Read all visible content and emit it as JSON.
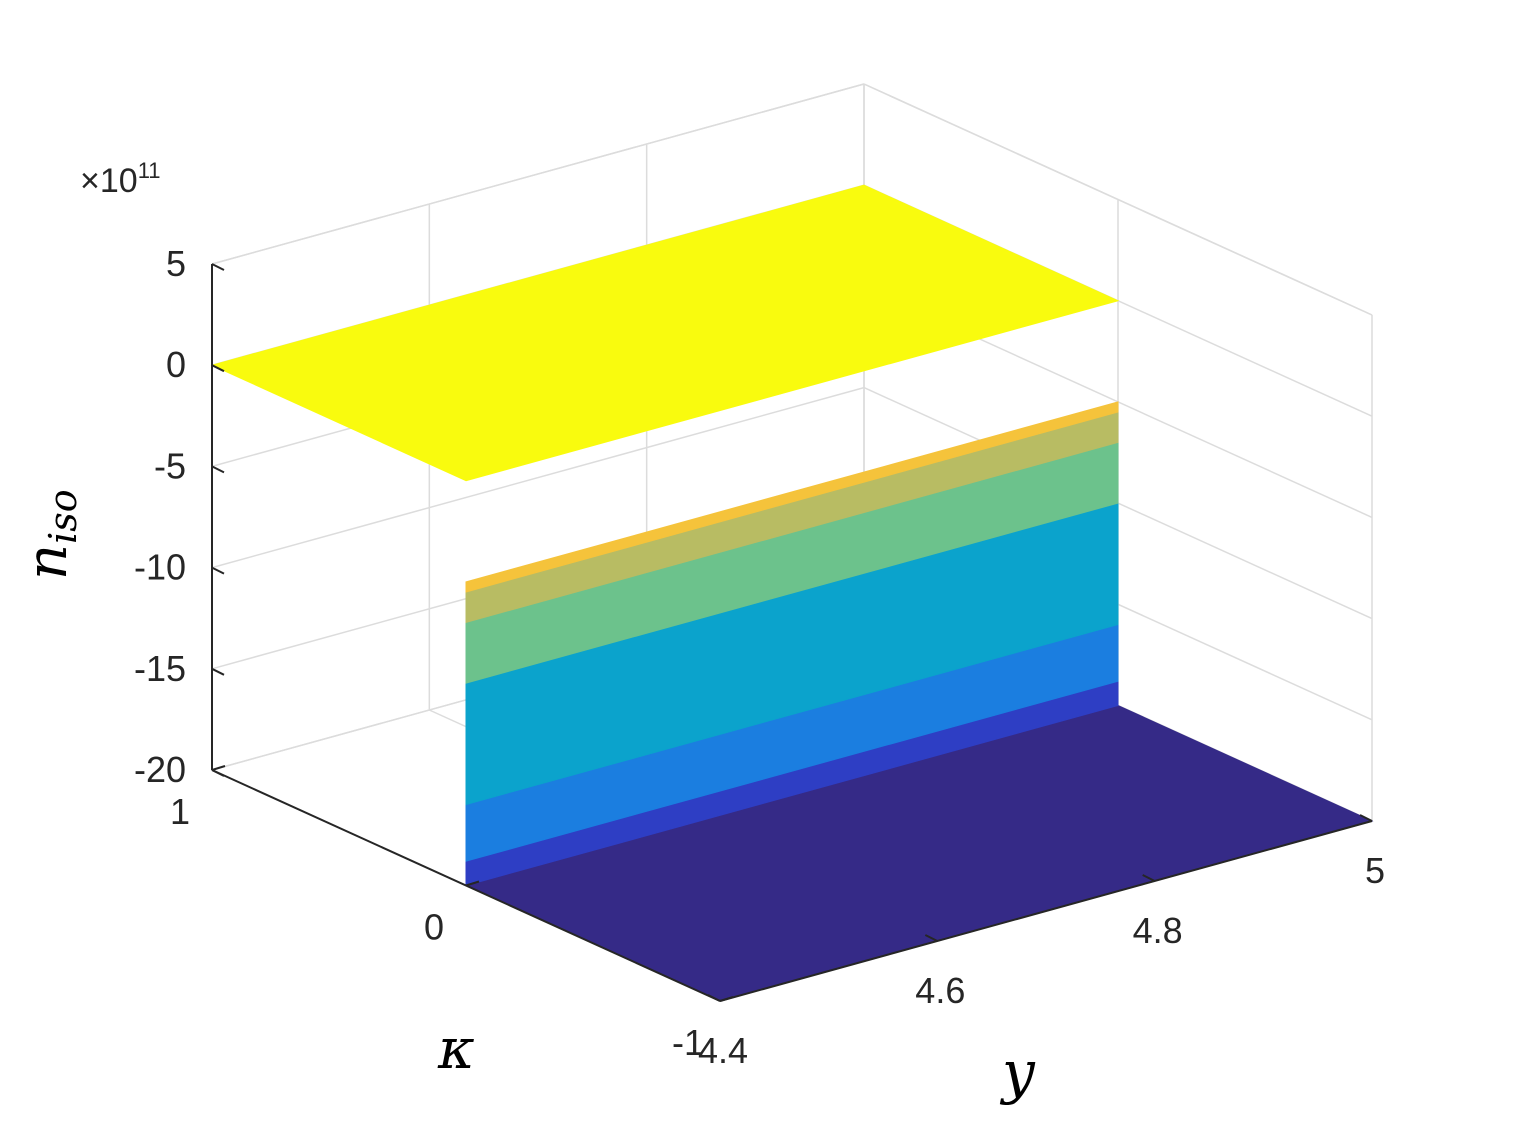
{
  "chart_data": {
    "type": "surface",
    "xlabel": "y",
    "ylabel": "κ",
    "zlabel": "n_{iso}",
    "z_exponent_label": "×10",
    "z_exponent_power": "11",
    "xlim": [
      4.4,
      5.0
    ],
    "ylim": [
      -1,
      1
    ],
    "zlim": [
      -20,
      5
    ],
    "x_ticks": [
      "4.4",
      "4.6",
      "4.8",
      "5"
    ],
    "y_ticks": [
      "-1",
      "0",
      "1"
    ],
    "z_ticks": [
      "-20",
      "-15",
      "-10",
      "-5",
      "0",
      "5"
    ],
    "grid": true,
    "colormap": "parula",
    "surfaces": [
      {
        "name": "",
        "kappa_range": [
          -1,
          0
        ],
        "y_range": [
          4.4,
          5.0
        ],
        "z_value": -20,
        "color": "#352a87"
      },
      {
        "name": "",
        "kappa_range": [
          0,
          1
        ],
        "y_range": [
          4.4,
          5.0
        ],
        "z_value": 0,
        "color": "#f9fb0e"
      }
    ],
    "step": {
      "kappa": 0,
      "z_from": -20,
      "z_to": 0,
      "bands": [
        {
          "color": "#2e3ec4",
          "z": [
            -20,
            -18.8
          ]
        },
        {
          "color": "#1b7ee0",
          "z": [
            -18.8,
            -16
          ]
        },
        {
          "color": "#0ba3cc",
          "z": [
            -16,
            -10
          ]
        },
        {
          "color": "#6cc28c",
          "z": [
            -10,
            -7
          ]
        },
        {
          "color": "#b8bc63",
          "z": [
            -7,
            -5.5
          ]
        },
        {
          "color": "#f5c33b",
          "z": [
            -5.5,
            -5
          ]
        }
      ]
    }
  }
}
